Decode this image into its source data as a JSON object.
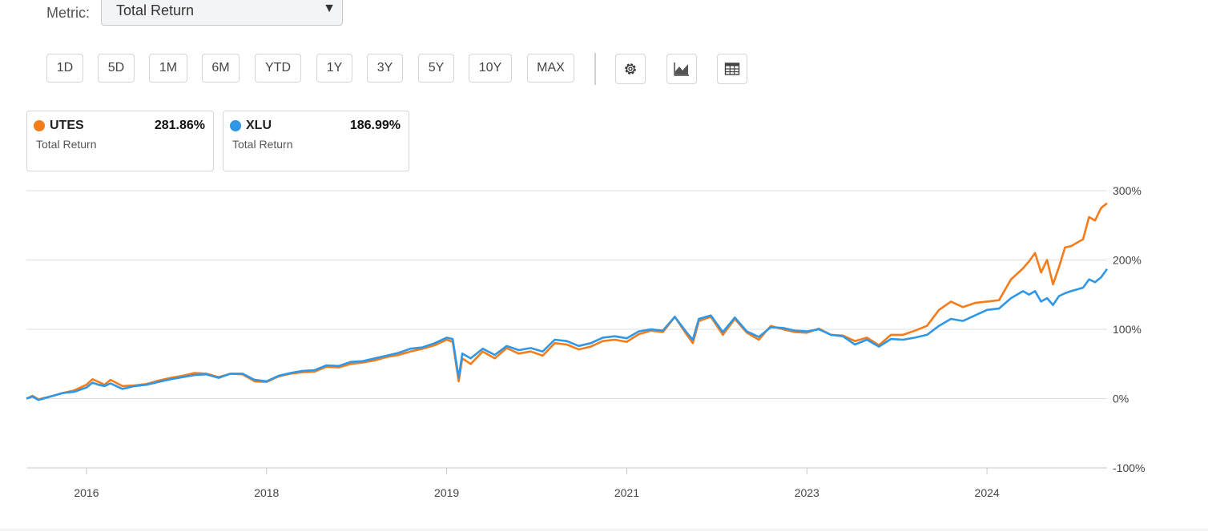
{
  "metric": {
    "label": "Metric:",
    "selected": "Total Return",
    "arrow": "▼"
  },
  "ranges": [
    "1D",
    "5D",
    "1M",
    "6M",
    "YTD",
    "1Y",
    "3Y",
    "5Y",
    "10Y",
    "MAX"
  ],
  "tools": [
    {
      "name": "settings-gear-icon"
    },
    {
      "name": "chart-type-icon"
    },
    {
      "name": "table-view-icon"
    }
  ],
  "legend": [
    {
      "symbol": "UTES",
      "value": "281.86%",
      "subtitle": "Total Return",
      "color": "#f57c1a"
    },
    {
      "symbol": "XLU",
      "value": "186.99%",
      "subtitle": "Total Return",
      "color": "#2f97e6"
    }
  ],
  "chart_data": {
    "type": "line",
    "xlabel": "",
    "ylabel": "",
    "xlim": [
      2015.5,
      2024.5
    ],
    "ylim": [
      -100,
      300
    ],
    "x_ticks": [
      2016,
      2018,
      2019,
      2021,
      2023,
      2024
    ],
    "x_tick_positions": [
      2016,
      2017.5,
      2019,
      2020.5,
      2022,
      2023.5
    ],
    "y_ticks": [
      300,
      200,
      100,
      0,
      -100
    ],
    "y_tick_labels": [
      "300%",
      "200%",
      "100%",
      "0%",
      "-100%"
    ],
    "grid": true,
    "series": [
      {
        "name": "UTES",
        "color": "#f57c1a",
        "points": [
          [
            2015.5,
            0
          ],
          [
            2015.55,
            4
          ],
          [
            2015.6,
            -1
          ],
          [
            2015.7,
            3
          ],
          [
            2015.8,
            8
          ],
          [
            2015.9,
            12
          ],
          [
            2016.0,
            20
          ],
          [
            2016.05,
            28
          ],
          [
            2016.1,
            24
          ],
          [
            2016.15,
            20
          ],
          [
            2016.2,
            27
          ],
          [
            2016.3,
            18
          ],
          [
            2016.4,
            19
          ],
          [
            2016.5,
            21
          ],
          [
            2016.6,
            26
          ],
          [
            2016.7,
            30
          ],
          [
            2016.8,
            33
          ],
          [
            2016.9,
            37
          ],
          [
            2017.0,
            36
          ],
          [
            2017.1,
            31
          ],
          [
            2017.2,
            36
          ],
          [
            2017.3,
            35
          ],
          [
            2017.4,
            25
          ],
          [
            2017.5,
            24
          ],
          [
            2017.6,
            32
          ],
          [
            2017.7,
            36
          ],
          [
            2017.8,
            38
          ],
          [
            2017.9,
            39
          ],
          [
            2018.0,
            46
          ],
          [
            2018.1,
            45
          ],
          [
            2018.2,
            50
          ],
          [
            2018.3,
            52
          ],
          [
            2018.4,
            55
          ],
          [
            2018.5,
            60
          ],
          [
            2018.6,
            63
          ],
          [
            2018.7,
            68
          ],
          [
            2018.8,
            72
          ],
          [
            2018.9,
            77
          ],
          [
            2019.0,
            85
          ],
          [
            2019.05,
            82
          ],
          [
            2019.1,
            25
          ],
          [
            2019.13,
            58
          ],
          [
            2019.2,
            50
          ],
          [
            2019.3,
            68
          ],
          [
            2019.4,
            58
          ],
          [
            2019.5,
            73
          ],
          [
            2019.6,
            65
          ],
          [
            2019.7,
            68
          ],
          [
            2019.8,
            62
          ],
          [
            2019.9,
            80
          ],
          [
            2020.0,
            78
          ],
          [
            2020.1,
            71
          ],
          [
            2020.2,
            75
          ],
          [
            2020.3,
            83
          ],
          [
            2020.4,
            85
          ],
          [
            2020.5,
            82
          ],
          [
            2020.6,
            93
          ],
          [
            2020.7,
            98
          ],
          [
            2020.8,
            96
          ],
          [
            2020.9,
            118
          ],
          [
            2021.0,
            92
          ],
          [
            2021.05,
            80
          ],
          [
            2021.1,
            112
          ],
          [
            2021.2,
            118
          ],
          [
            2021.3,
            92
          ],
          [
            2021.4,
            115
          ],
          [
            2021.5,
            95
          ],
          [
            2021.6,
            85
          ],
          [
            2021.7,
            105
          ],
          [
            2021.8,
            100
          ],
          [
            2021.9,
            96
          ],
          [
            2022.0,
            95
          ],
          [
            2022.1,
            101
          ],
          [
            2022.2,
            92
          ],
          [
            2022.3,
            91
          ],
          [
            2022.4,
            83
          ],
          [
            2022.5,
            88
          ],
          [
            2022.6,
            77
          ],
          [
            2022.7,
            92
          ],
          [
            2022.8,
            92
          ],
          [
            2022.9,
            98
          ],
          [
            2023.0,
            105
          ],
          [
            2023.1,
            128
          ],
          [
            2023.2,
            140
          ],
          [
            2023.3,
            132
          ],
          [
            2023.4,
            138
          ],
          [
            2023.5,
            140
          ],
          [
            2023.6,
            142
          ],
          [
            2023.7,
            172
          ],
          [
            2023.8,
            188
          ],
          [
            2023.85,
            198
          ],
          [
            2023.9,
            210
          ],
          [
            2023.95,
            182
          ],
          [
            2024.0,
            200
          ],
          [
            2024.05,
            165
          ],
          [
            2024.1,
            190
          ],
          [
            2024.15,
            218
          ],
          [
            2024.2,
            220
          ],
          [
            2024.3,
            230
          ],
          [
            2024.35,
            262
          ],
          [
            2024.4,
            257
          ],
          [
            2024.45,
            275
          ],
          [
            2024.5,
            282
          ]
        ]
      },
      {
        "name": "XLU",
        "color": "#2f97e6",
        "points": [
          [
            2015.5,
            0
          ],
          [
            2015.55,
            3
          ],
          [
            2015.6,
            -2
          ],
          [
            2015.7,
            3
          ],
          [
            2015.8,
            8
          ],
          [
            2015.9,
            10
          ],
          [
            2016.0,
            16
          ],
          [
            2016.05,
            23
          ],
          [
            2016.1,
            20
          ],
          [
            2016.15,
            18
          ],
          [
            2016.2,
            22
          ],
          [
            2016.3,
            14
          ],
          [
            2016.4,
            18
          ],
          [
            2016.5,
            20
          ],
          [
            2016.6,
            24
          ],
          [
            2016.7,
            28
          ],
          [
            2016.8,
            31
          ],
          [
            2016.9,
            34
          ],
          [
            2017.0,
            35
          ],
          [
            2017.1,
            30
          ],
          [
            2017.2,
            36
          ],
          [
            2017.3,
            36
          ],
          [
            2017.4,
            27
          ],
          [
            2017.5,
            25
          ],
          [
            2017.6,
            33
          ],
          [
            2017.7,
            37
          ],
          [
            2017.8,
            40
          ],
          [
            2017.9,
            41
          ],
          [
            2018.0,
            48
          ],
          [
            2018.1,
            47
          ],
          [
            2018.2,
            53
          ],
          [
            2018.3,
            54
          ],
          [
            2018.4,
            58
          ],
          [
            2018.5,
            62
          ],
          [
            2018.6,
            66
          ],
          [
            2018.7,
            72
          ],
          [
            2018.8,
            74
          ],
          [
            2018.9,
            80
          ],
          [
            2019.0,
            88
          ],
          [
            2019.05,
            86
          ],
          [
            2019.1,
            30
          ],
          [
            2019.13,
            65
          ],
          [
            2019.2,
            58
          ],
          [
            2019.3,
            72
          ],
          [
            2019.4,
            63
          ],
          [
            2019.5,
            76
          ],
          [
            2019.6,
            70
          ],
          [
            2019.7,
            73
          ],
          [
            2019.8,
            68
          ],
          [
            2019.9,
            85
          ],
          [
            2020.0,
            83
          ],
          [
            2020.1,
            76
          ],
          [
            2020.2,
            80
          ],
          [
            2020.3,
            88
          ],
          [
            2020.4,
            90
          ],
          [
            2020.5,
            87
          ],
          [
            2020.6,
            97
          ],
          [
            2020.7,
            100
          ],
          [
            2020.8,
            98
          ],
          [
            2020.9,
            118
          ],
          [
            2021.0,
            95
          ],
          [
            2021.05,
            85
          ],
          [
            2021.1,
            115
          ],
          [
            2021.2,
            120
          ],
          [
            2021.3,
            96
          ],
          [
            2021.4,
            117
          ],
          [
            2021.5,
            97
          ],
          [
            2021.6,
            89
          ],
          [
            2021.7,
            103
          ],
          [
            2021.8,
            102
          ],
          [
            2021.9,
            98
          ],
          [
            2022.0,
            97
          ],
          [
            2022.1,
            100
          ],
          [
            2022.2,
            92
          ],
          [
            2022.3,
            90
          ],
          [
            2022.4,
            78
          ],
          [
            2022.5,
            85
          ],
          [
            2022.6,
            75
          ],
          [
            2022.7,
            86
          ],
          [
            2022.8,
            85
          ],
          [
            2022.9,
            88
          ],
          [
            2023.0,
            92
          ],
          [
            2023.1,
            105
          ],
          [
            2023.2,
            115
          ],
          [
            2023.3,
            112
          ],
          [
            2023.4,
            120
          ],
          [
            2023.5,
            128
          ],
          [
            2023.6,
            130
          ],
          [
            2023.7,
            145
          ],
          [
            2023.8,
            155
          ],
          [
            2023.85,
            150
          ],
          [
            2023.9,
            155
          ],
          [
            2023.95,
            140
          ],
          [
            2024.0,
            145
          ],
          [
            2024.05,
            135
          ],
          [
            2024.1,
            148
          ],
          [
            2024.15,
            152
          ],
          [
            2024.2,
            155
          ],
          [
            2024.3,
            160
          ],
          [
            2024.35,
            172
          ],
          [
            2024.4,
            168
          ],
          [
            2024.45,
            175
          ],
          [
            2024.5,
            187
          ]
        ]
      }
    ]
  }
}
